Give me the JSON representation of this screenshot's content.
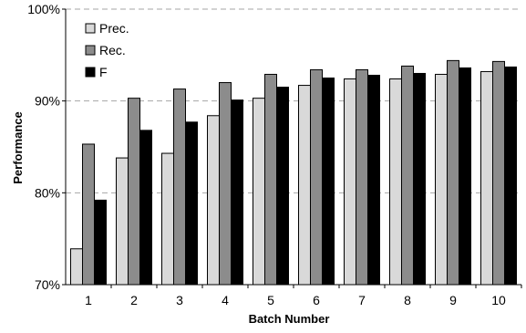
{
  "chart_data": {
    "type": "bar",
    "xlabel": "Batch Number",
    "ylabel": "Performance",
    "ylim": [
      70,
      100
    ],
    "yticks": [
      "70%",
      "80%",
      "90%",
      "100%"
    ],
    "ytick_values": [
      70,
      80,
      90,
      100
    ],
    "grid": "horizontal dashed",
    "legend_placement": "top-left",
    "categories": [
      "1",
      "2",
      "3",
      "4",
      "5",
      "6",
      "7",
      "8",
      "9",
      "10"
    ],
    "series": [
      {
        "name": "Prec.",
        "color": "#d9d9d9",
        "values": [
          73.9,
          83.8,
          84.3,
          88.4,
          90.3,
          91.7,
          92.4,
          92.4,
          92.9,
          93.2
        ]
      },
      {
        "name": "Rec.",
        "color": "#8c8c8c",
        "values": [
          85.3,
          90.3,
          91.3,
          92.0,
          92.9,
          93.4,
          93.4,
          93.8,
          94.4,
          94.3
        ]
      },
      {
        "name": "F",
        "color": "#000000",
        "values": [
          79.2,
          86.8,
          87.7,
          90.1,
          91.5,
          92.5,
          92.8,
          93.0,
          93.6,
          93.7
        ]
      }
    ]
  }
}
